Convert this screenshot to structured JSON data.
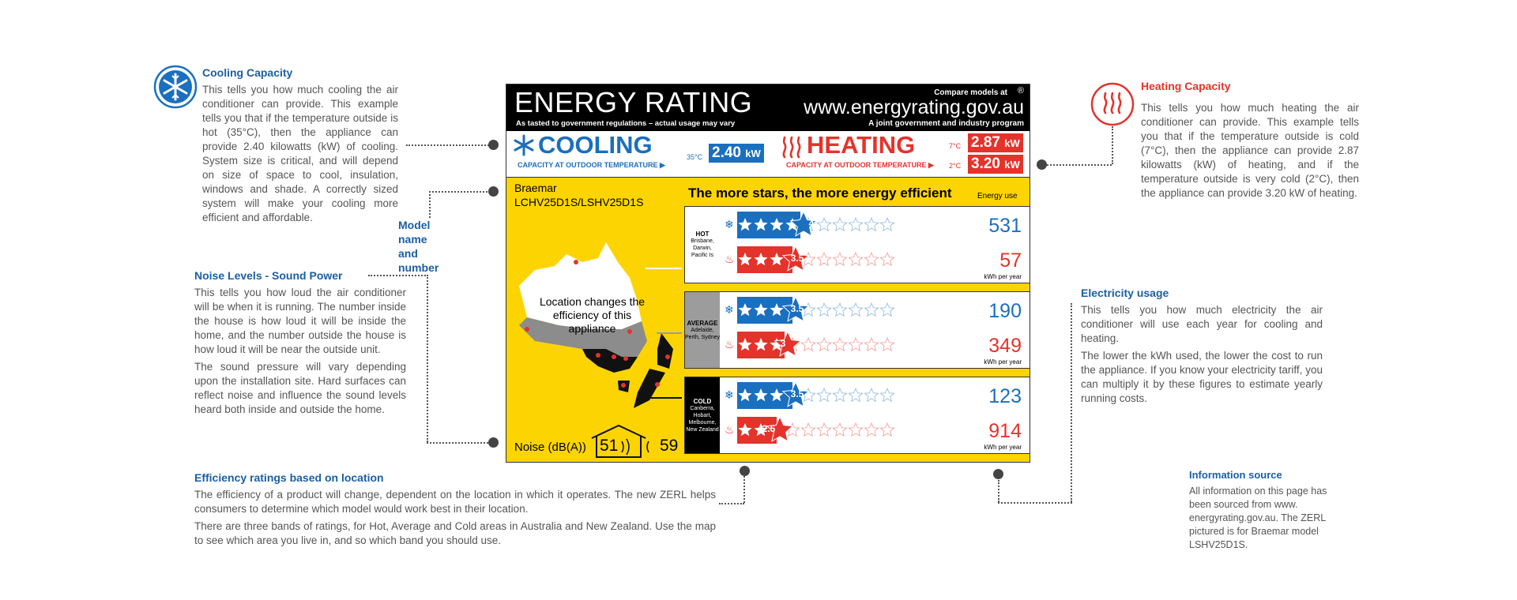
{
  "label": {
    "title": "ENERGY RATING",
    "subtitle": "As tasted to government regulations – actual usage may vary",
    "compare": "Compare models at",
    "website": "www.energyrating.gov.au",
    "joint": "A joint government and industry program",
    "registered": "®",
    "cooling_word": "COOLING",
    "cooling_caption": "CAPACITY AT OUTDOOR TEMPERATURE ▶",
    "cooling_temp": "35°C",
    "cooling_value": "2.40",
    "cooling_unit": "kW",
    "heating_word": "HEATING",
    "heating_caption": "CAPACITY AT OUTDOOR TEMPERATURE ▶",
    "heating_temp_1": "7°C",
    "heating_value_1": "2.87",
    "heating_temp_2": "2°C",
    "heating_value_2": "3.20",
    "heating_unit": "kW",
    "brand": "Braemar",
    "model": "LCHV25D1S/LSHV25D1S",
    "stars_heading": "The more stars, the more energy efficient",
    "energy_use": "Energy use",
    "map_text": "Location changes the efficiency of this appliance",
    "noise_label": "Noise (dB(A))",
    "noise_inside": "51",
    "noise_outside": "59",
    "kwh_label": "kWh per year",
    "bands": [
      {
        "name": "HOT",
        "places": "Brisbane, Darwin, Pacific Is",
        "cool_stars": "4",
        "heat_stars": "3.5",
        "cool_kwh": "531",
        "heat_kwh": "57"
      },
      {
        "name": "AVERAGE",
        "places": "Adelaide, Perth, Sydney",
        "cool_stars": "3.5",
        "heat_stars": "3",
        "cool_kwh": "190",
        "heat_kwh": "349"
      },
      {
        "name": "COLD",
        "places": "Canberra, Hobart, Melbourne, New Zealand",
        "cool_stars": "3.5",
        "heat_stars": "2.5",
        "cool_kwh": "123",
        "heat_kwh": "914"
      }
    ]
  },
  "annotations": {
    "cooling": {
      "title": "Cooling Capacity",
      "text": "This tells you how much cooling the air conditioner can provide. This example tells you that if the temperature outside is hot (35°C), then the appliance can provide 2.40 kilowatts (kW) of cooling. System size is critical, and will depend on size of space to cool, insulation, windows and shade. A correctly sized system will make your cooling more efficient and affordable."
    },
    "model": {
      "title": "Model name and number"
    },
    "noise": {
      "title": "Noise Levels - Sound Power",
      "text1": "This tells you how loud the air conditioner will be when it is running. The number inside the house is how loud it will be inside the home, and the number outside the house is how loud it will be near the outside unit.",
      "text2": "The sound pressure will vary depending upon the installation site. Hard surfaces can reflect noise and influence the sound levels heard both inside and outside the home."
    },
    "efficiency": {
      "title": "Efficiency ratings based on location",
      "text1": "The efficiency of a product will change, dependent on the location in which it operates. The new ZERL helps consumers to determine which model would work best in their location.",
      "text2": "There are three bands of ratings, for Hot, Average and Cold areas in Australia and New Zealand. Use the map to see which area you live in, and so which band you should use."
    },
    "heating": {
      "title": "Heating Capacity",
      "text": "This tells you how much heating the air conditioner can provide. This example tells you that if the temperature outside is cold (7°C), then the appliance can provide 2.87 kilowatts (kW) of heating, and if the temperature outside is very cold (2°C), then the appliance can provide 3.20 kW of heating."
    },
    "electricity": {
      "title": "Electricity usage",
      "text1": "This tells you how much electricity the air conditioner will use each year for cooling and heating.",
      "text2": "The lower the kWh used, the lower the cost to run the appliance. If you know your electricity tariff, you can multiply it by these figures to estimate yearly running costs."
    },
    "source": {
      "title": "Information source",
      "text": "All information on this page has been sourced from www. energyrating.gov.au. The ZERL pictured is for Braemar model LSHV25D1S."
    }
  },
  "colors": {
    "cool_blue": "#1a6fbf",
    "heat_red": "#e4332b",
    "label_yellow": "#fcd402",
    "accent_blue": "#1a5fa6"
  },
  "icons": {
    "cooling": "snowflake-icon",
    "heating": "heat-waves-icon"
  }
}
